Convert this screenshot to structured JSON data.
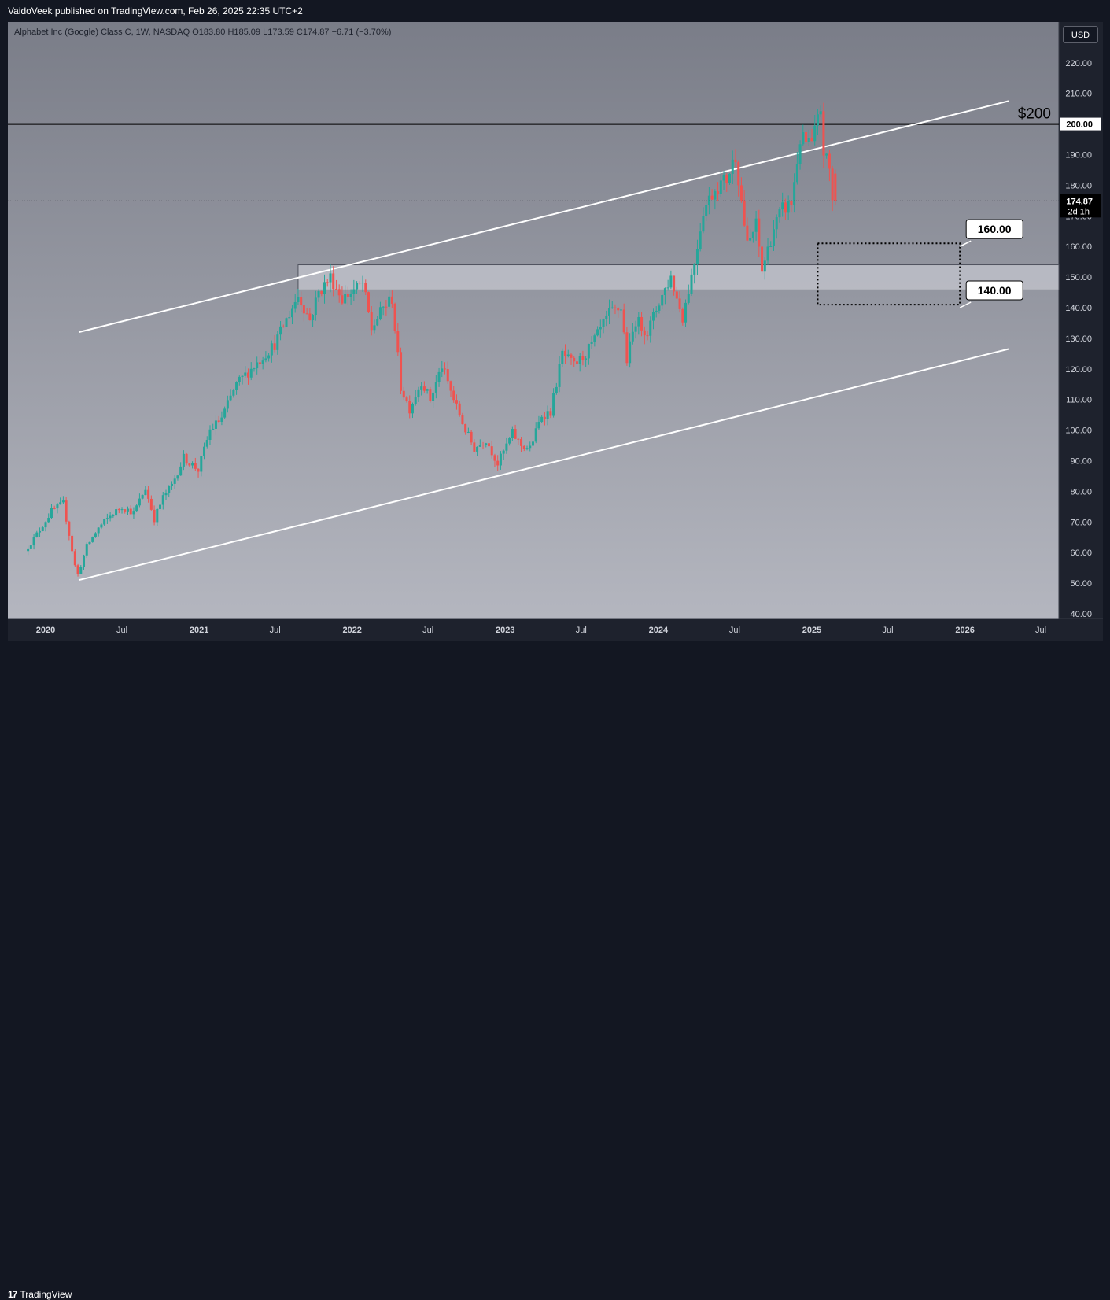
{
  "header": {
    "published": "VaidoVeek published on TradingView.com, Feb 26, 2025 22:35 UTC+2"
  },
  "symbol": {
    "info": "Alphabet Inc (Google) Class C, 1W, NASDAQ  O183.80  H185.09  L173.59  C174.87  −6.71 (−3.70%)"
  },
  "price_axis": {
    "currency": "USD"
  },
  "footer": {
    "brand": "TradingView",
    "logo_glyph": "17"
  },
  "colors": {
    "up": "#26a69a",
    "down": "#ef5350",
    "channel": "#ffffff",
    "level": "#000000"
  },
  "chart_data": {
    "type": "candlestick",
    "title": "Alphabet Inc (Google) Class C, 1W, NASDAQ",
    "timeframe": "1W",
    "ylim": [
      40,
      222
    ],
    "y_ticks": [
      40,
      50,
      60,
      70,
      80,
      90,
      100,
      110,
      120,
      130,
      140,
      150,
      160,
      170,
      180,
      190,
      200,
      210,
      220
    ],
    "y_tick_labels": [
      "40.00",
      "50.00",
      "60.00",
      "70.00",
      "80.00",
      "90.00",
      "100.00",
      "110.00",
      "120.00",
      "130.00",
      "140.00",
      "150.00",
      "160.00",
      "170.00",
      "180.00",
      "190.00",
      "200.00",
      "210.00",
      "220.00"
    ],
    "x_ticks": [
      {
        "date": "2020-01-01",
        "label": "2020",
        "bold": true
      },
      {
        "date": "2020-07-01",
        "label": "Jul",
        "bold": false
      },
      {
        "date": "2021-01-01",
        "label": "2021",
        "bold": true
      },
      {
        "date": "2021-07-01",
        "label": "Jul",
        "bold": false
      },
      {
        "date": "2022-01-01",
        "label": "2022",
        "bold": true
      },
      {
        "date": "2022-07-01",
        "label": "Jul",
        "bold": false
      },
      {
        "date": "2023-01-01",
        "label": "2023",
        "bold": true
      },
      {
        "date": "2023-07-01",
        "label": "Jul",
        "bold": false
      },
      {
        "date": "2024-01-01",
        "label": "2024",
        "bold": true
      },
      {
        "date": "2024-07-01",
        "label": "Jul",
        "bold": false
      },
      {
        "date": "2025-01-01",
        "label": "2025",
        "bold": true
      },
      {
        "date": "2025-07-01",
        "label": "Jul",
        "bold": false
      },
      {
        "date": "2026-01-01",
        "label": "2026",
        "bold": true
      },
      {
        "date": "2026-07-01",
        "label": "Jul",
        "bold": false
      }
    ],
    "last_bar": {
      "open": 183.8,
      "high": 185.09,
      "low": 173.59,
      "close": 174.87,
      "change": -6.71,
      "change_pct": -3.7
    },
    "last_price_label": "174.87",
    "countdown_label": "2d 1h",
    "price_path": [
      [
        "2019-11-20",
        60.5
      ],
      [
        "2019-12-18",
        66
      ],
      [
        "2020-01-22",
        73.5
      ],
      [
        "2020-02-19",
        76
      ],
      [
        "2020-03-04",
        66
      ],
      [
        "2020-03-23",
        52
      ],
      [
        "2020-04-15",
        62
      ],
      [
        "2020-05-13",
        68
      ],
      [
        "2020-06-10",
        72
      ],
      [
        "2020-07-08",
        75
      ],
      [
        "2020-08-05",
        73
      ],
      [
        "2020-09-02",
        81
      ],
      [
        "2020-09-23",
        71
      ],
      [
        "2020-10-14",
        78
      ],
      [
        "2020-11-04",
        82
      ],
      [
        "2020-12-02",
        91
      ],
      [
        "2021-01-06",
        87
      ],
      [
        "2021-02-03",
        100
      ],
      [
        "2021-03-03",
        104
      ],
      [
        "2021-04-07",
        115
      ],
      [
        "2021-05-05",
        119
      ],
      [
        "2021-06-02",
        123
      ],
      [
        "2021-07-07",
        128
      ],
      [
        "2021-08-04",
        136
      ],
      [
        "2021-09-01",
        144
      ],
      [
        "2021-09-29",
        136
      ],
      [
        "2021-10-20",
        145
      ],
      [
        "2021-11-17",
        150
      ],
      [
        "2021-12-15",
        143
      ],
      [
        "2022-01-05",
        145
      ],
      [
        "2022-02-02",
        148
      ],
      [
        "2022-02-23",
        133
      ],
      [
        "2022-03-23",
        140
      ],
      [
        "2022-04-13",
        143
      ],
      [
        "2022-05-04",
        114
      ],
      [
        "2022-05-25",
        107
      ],
      [
        "2022-06-22",
        116
      ],
      [
        "2022-07-13",
        110
      ],
      [
        "2022-08-10",
        121
      ],
      [
        "2022-09-07",
        110
      ],
      [
        "2022-10-05",
        100
      ],
      [
        "2022-10-26",
        94
      ],
      [
        "2022-11-23",
        97
      ],
      [
        "2022-12-21",
        89
      ],
      [
        "2023-01-25",
        99
      ],
      [
        "2023-02-15",
        95
      ],
      [
        "2023-03-08",
        94
      ],
      [
        "2023-04-05",
        105
      ],
      [
        "2023-04-26",
        106
      ],
      [
        "2023-05-24",
        125
      ],
      [
        "2023-06-21",
        121
      ],
      [
        "2023-07-19",
        125
      ],
      [
        "2023-08-16",
        131
      ],
      [
        "2023-09-13",
        138
      ],
      [
        "2023-10-11",
        140
      ],
      [
        "2023-10-25",
        123
      ],
      [
        "2023-11-15",
        136
      ],
      [
        "2023-12-13",
        132
      ],
      [
        "2024-01-10",
        142
      ],
      [
        "2024-02-07",
        150
      ],
      [
        "2024-02-21",
        143
      ],
      [
        "2024-03-06",
        137
      ],
      [
        "2024-04-03",
        155
      ],
      [
        "2024-04-24",
        172
      ],
      [
        "2024-05-22",
        179
      ],
      [
        "2024-06-19",
        182
      ],
      [
        "2024-07-10",
        190
      ],
      [
        "2024-08-07",
        160
      ],
      [
        "2024-08-28",
        167
      ],
      [
        "2024-09-11",
        152
      ],
      [
        "2024-10-09",
        166
      ],
      [
        "2024-10-30",
        172
      ],
      [
        "2024-11-20",
        174
      ],
      [
        "2024-12-11",
        195
      ],
      [
        "2025-01-08",
        193
      ],
      [
        "2025-01-29",
        205
      ],
      [
        "2025-02-05",
        191
      ],
      [
        "2025-02-19",
        185
      ],
      [
        "2025-02-26",
        174.87
      ]
    ],
    "channel_upper": {
      "start": [
        "2020-03-20",
        132
      ],
      "end": [
        "2026-04-15",
        207.5
      ]
    },
    "channel_lower": {
      "start": [
        "2020-03-20",
        51
      ],
      "end": [
        "2026-04-15",
        126.5
      ]
    },
    "horizontal_level": {
      "value": 200,
      "label": "$200",
      "axis_label": "200.00"
    },
    "support_zone": {
      "from": "2021-08-25",
      "low": 145.8,
      "high": 154
    },
    "target_box": {
      "from": "2025-01-15",
      "to": "2025-12-20",
      "low": 141,
      "high": 161
    },
    "callouts": [
      {
        "text": "160.00",
        "value": 160
      },
      {
        "text": "140.00",
        "value": 140
      }
    ]
  }
}
